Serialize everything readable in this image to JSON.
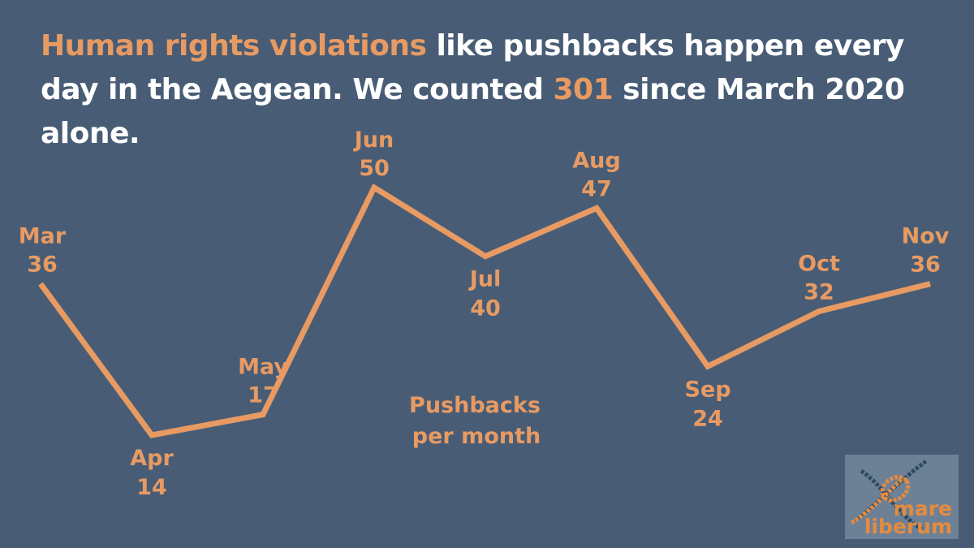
{
  "headline": {
    "part1": "Human rights violations",
    "part2": " like pushbacks happen every day in the Aegean. We counted ",
    "part3": "301",
    "part4": " since March 2020 alone."
  },
  "colors": {
    "background": "#485d75",
    "accent": "#e89a63",
    "text": "#ffffff"
  },
  "chart_data": {
    "type": "line",
    "categories": [
      "Mar",
      "Apr",
      "May",
      "Jun",
      "Jul",
      "Aug",
      "Sep",
      "Oct",
      "Nov"
    ],
    "values": [
      36,
      14,
      17,
      50,
      40,
      47,
      24,
      32,
      36
    ],
    "annotation": "Pushbacks per month",
    "title": "",
    "xlabel": "",
    "ylabel": "",
    "ylim": [
      14,
      50
    ],
    "grid": false,
    "legend": "none",
    "label_position": [
      "above",
      "below",
      "above",
      "above",
      "below",
      "above",
      "below",
      "above",
      "above"
    ]
  },
  "logo": {
    "line1": "mare",
    "line2": "liberum",
    "icon": "rope-knot-icon"
  }
}
